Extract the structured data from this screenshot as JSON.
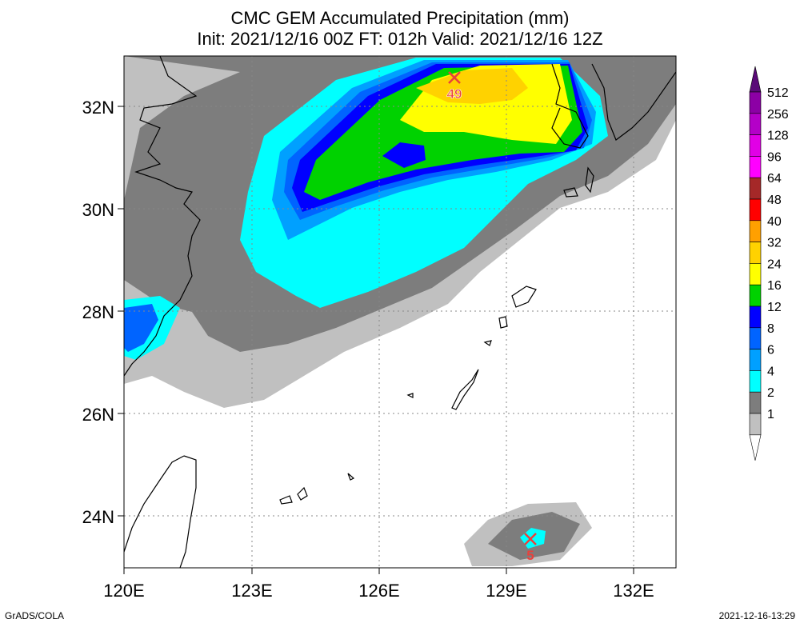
{
  "title_line1": "CMC GEM Accumulated Precipitation (mm)",
  "title_line2": "Init: 2021/12/16 00Z  FT: 012h  Valid: 2021/12/16 12Z",
  "lat_labels": [
    "32N",
    "30N",
    "28N",
    "26N",
    "24N"
  ],
  "lon_labels": [
    "120E",
    "123E",
    "126E",
    "129E",
    "132E"
  ],
  "colorbar": {
    "labels": [
      "512",
      "256",
      "128",
      "96",
      "64",
      "48",
      "40",
      "32",
      "24",
      "16",
      "12",
      "8",
      "6",
      "4",
      "2",
      "1"
    ],
    "colors": [
      "#8c00a5",
      "#b400c8",
      "#e100e6",
      "#ff00ff",
      "#a52828",
      "#ff0000",
      "#ffa000",
      "#ffd200",
      "#ffff00",
      "#00d200",
      "#0000ff",
      "#0064ff",
      "#00a0ff",
      "#00ffff",
      "#7d7d7d",
      "#c0c0c0"
    ],
    "top_color": "#5a0a78",
    "bottom_color": "#ffffff"
  },
  "markers": [
    {
      "label": "49"
    },
    {
      "label": "5"
    }
  ],
  "footer_left": "GrADS/COLA",
  "footer_right": "2021-12-16-13:29"
}
